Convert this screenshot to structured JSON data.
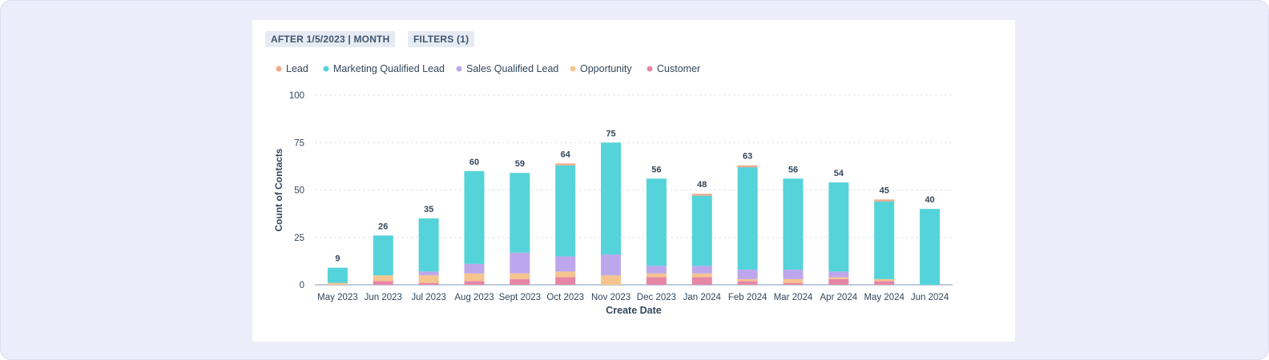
{
  "filters": {
    "date_range_label": "AFTER 1/5/2023 | MONTH",
    "filters_label": "FILTERS (1)"
  },
  "colors": {
    "Lead": "#f0a98a",
    "Marketing Qualified Lead": "#55d3da",
    "Sales Qualified Lead": "#bda7ec",
    "Opportunity": "#f5c48f",
    "Customer": "#e686a6"
  },
  "chart_data": {
    "type": "bar",
    "stacked": true,
    "title": "",
    "xlabel": "Create Date",
    "ylabel": "Count of Contacts",
    "ylim": [
      0,
      100
    ],
    "yticks": [
      0,
      25,
      50,
      75,
      100
    ],
    "grid": true,
    "legend_position": "top-left",
    "categories": [
      "May 2023",
      "Jun 2023",
      "Jul 2023",
      "Aug 2023",
      "Sept 2023",
      "Oct 2023",
      "Nov 2023",
      "Dec 2023",
      "Jan 2024",
      "Feb 2024",
      "Mar 2024",
      "Apr 2024",
      "May 2024",
      "Jun 2024"
    ],
    "totals": [
      9,
      26,
      35,
      60,
      59,
      64,
      75,
      56,
      48,
      63,
      56,
      54,
      45,
      40
    ],
    "series": [
      {
        "name": "Customer",
        "values": [
          0,
          2,
          1,
          2,
          3,
          4,
          0,
          4,
          4,
          2,
          1,
          3,
          2,
          0
        ]
      },
      {
        "name": "Opportunity",
        "values": [
          1,
          3,
          4,
          4,
          3,
          3,
          5,
          2,
          2,
          1,
          2,
          1,
          1,
          0
        ]
      },
      {
        "name": "Sales Qualified Lead",
        "values": [
          0,
          0,
          2,
          5,
          11,
          8,
          11,
          4,
          4,
          5,
          5,
          3,
          0,
          0
        ]
      },
      {
        "name": "Marketing Qualified Lead",
        "values": [
          8,
          21,
          28,
          49,
          42,
          48,
          59,
          46,
          37,
          54,
          48,
          47,
          41,
          40
        ]
      },
      {
        "name": "Lead",
        "values": [
          0,
          0,
          0,
          0,
          0,
          1,
          0,
          0,
          1,
          1,
          0,
          0,
          1,
          0
        ]
      }
    ],
    "legend_order": [
      "Lead",
      "Marketing Qualified Lead",
      "Sales Qualified Lead",
      "Opportunity",
      "Customer"
    ]
  }
}
